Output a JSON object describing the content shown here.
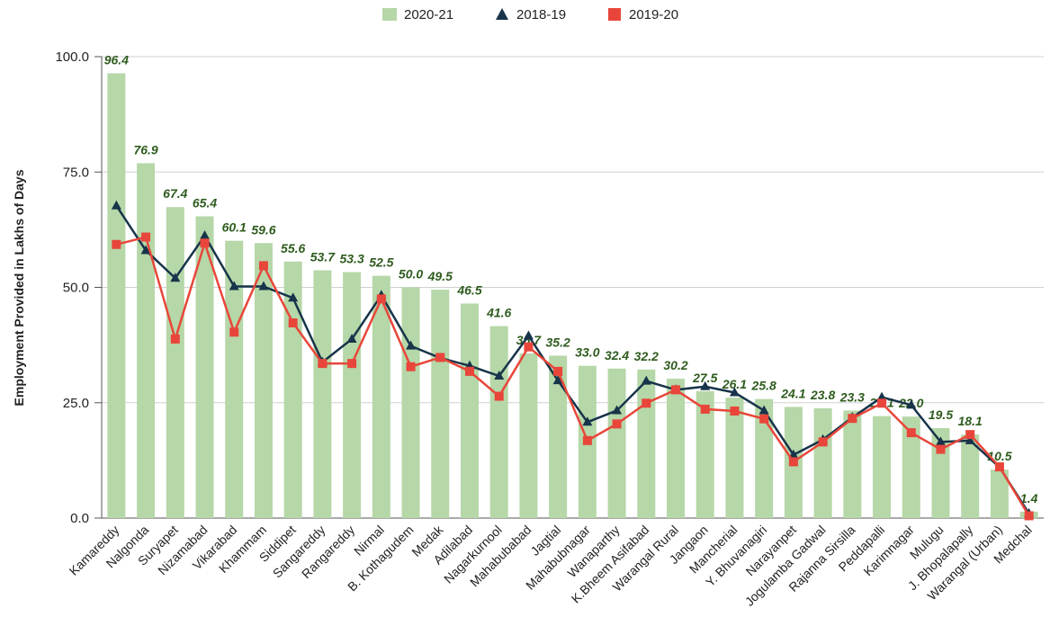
{
  "chart_data": {
    "type": "bar",
    "ylabel": "Employment Provided in Lakhs of Days",
    "categories": [
      "Kamareddy",
      "Nalgonda",
      "Suryapet",
      "Nizamabad",
      "Vikarabad",
      "Khammam",
      "Siddipet",
      "Sangareddy",
      "Rangareddy",
      "Nirmal",
      "B. Kothagudem",
      "Medak",
      "Adilabad",
      "Nagarkurnool",
      "Mahabubabad",
      "Jagtial",
      "Mahabubnagar",
      "Wanaparthy",
      "K.Bheem Asifabad",
      "Warangal Rural",
      "Jangaon",
      "Mancherial",
      "Y. Bhuvanagiri",
      "Narayanpet",
      "Jogulamba Gadwal",
      "Rajanna Sirsilla",
      "Peddapalli",
      "Karimnagar",
      "Mulugu",
      "J. Bhopalapally",
      "Warangal (Urban)",
      "Medchal"
    ],
    "series": [
      {
        "name": "2020-21",
        "type": "bar",
        "color": "#b6d7a8",
        "values": [
          96.4,
          76.9,
          67.4,
          65.4,
          60.1,
          59.6,
          55.6,
          53.7,
          53.3,
          52.5,
          50.0,
          49.5,
          46.5,
          41.6,
          35.7,
          35.2,
          33.0,
          32.4,
          32.2,
          30.2,
          27.5,
          26.1,
          25.8,
          24.1,
          23.8,
          23.3,
          22.1,
          22.0,
          19.5,
          18.1,
          10.5,
          1.4
        ],
        "value_labels": [
          "96.4",
          "76.9",
          "67.4",
          "65.4",
          "60.1",
          "59.6",
          "55.6",
          "53.7",
          "53.3",
          "52.5",
          "50.0",
          "49.5",
          "46.5",
          "41.6",
          "35.7",
          "35.2",
          "33.0",
          "32.4",
          "32.2",
          "30.2",
          "27.5",
          "26.1",
          "25.8",
          "24.1",
          "23.8",
          "23.3",
          "22.1",
          "22.0",
          "19.5",
          "18.1",
          "10.5",
          "1.4"
        ],
        "label_color": "#2e5c1e"
      },
      {
        "name": "2018-19",
        "type": "line",
        "marker": "triangle",
        "color": "#17344a",
        "values": [
          67.7,
          58.0,
          52.0,
          61.2,
          50.2,
          50.2,
          47.7,
          33.8,
          38.8,
          48.3,
          37.3,
          34.7,
          33.0,
          30.8,
          39.5,
          29.8,
          20.8,
          23.3,
          29.7,
          27.8,
          28.5,
          27.2,
          23.3,
          13.7,
          17.0,
          21.8,
          26.2,
          24.5,
          16.5,
          16.8,
          11.0,
          1.0
        ]
      },
      {
        "name": "2019-20",
        "type": "line",
        "marker": "square",
        "color": "#e8463a",
        "values": [
          59.3,
          60.9,
          38.8,
          59.6,
          40.3,
          54.7,
          42.3,
          33.5,
          33.5,
          47.5,
          32.8,
          34.8,
          31.8,
          26.4,
          37.1,
          31.8,
          16.8,
          20.4,
          24.9,
          27.8,
          23.6,
          23.2,
          21.5,
          12.2,
          16.5,
          21.6,
          24.9,
          18.5,
          14.9,
          18.1,
          11.1,
          0.5
        ]
      }
    ],
    "ylim": [
      0,
      100
    ],
    "yticks": [
      {
        "value": 0,
        "label": "0.0"
      },
      {
        "value": 25,
        "label": "25.0"
      },
      {
        "value": 50,
        "label": "50.0"
      },
      {
        "value": 75,
        "label": "75.0"
      },
      {
        "value": 100,
        "label": "100.0"
      }
    ],
    "grid": true,
    "legend": "top"
  }
}
